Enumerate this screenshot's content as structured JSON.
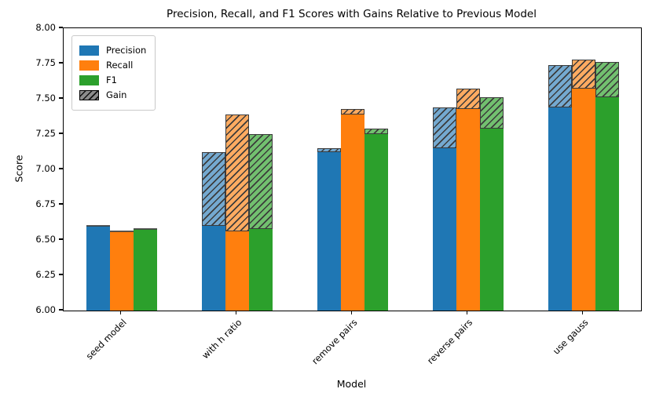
{
  "chart_data": {
    "type": "bar",
    "title": "Precision, Recall, and F1 Scores with Gains Relative to Previous Model",
    "xlabel": "Model",
    "ylabel": "Score",
    "ylim": [
      6.0,
      8.0
    ],
    "y_ticks": [
      "6.00",
      "6.25",
      "6.50",
      "6.75",
      "7.00",
      "7.25",
      "7.50",
      "7.75",
      "8.00"
    ],
    "categories": [
      "seed model",
      "with h ratio",
      "remove pairs",
      "reverse pairs",
      "use gauss"
    ],
    "series": [
      {
        "name": "Precision",
        "color": "#1f77b4",
        "gain_tint": "#74a9d0",
        "values": [
          6.6,
          7.12,
          7.15,
          7.44,
          7.74
        ],
        "gains": [
          0.0,
          0.52,
          0.03,
          0.29,
          0.3
        ]
      },
      {
        "name": "Recall",
        "color": "#ff7f0e",
        "gain_tint": "#ffab61",
        "values": [
          6.56,
          7.39,
          7.43,
          7.57,
          7.78
        ],
        "gains": [
          0.0,
          0.83,
          0.04,
          0.14,
          0.21
        ]
      },
      {
        "name": "F1",
        "color": "#2ca02c",
        "gain_tint": "#72c06f",
        "values": [
          6.58,
          7.25,
          7.29,
          7.51,
          7.76
        ],
        "gains": [
          0.0,
          0.67,
          0.04,
          0.22,
          0.25
        ]
      }
    ],
    "gain_legend": {
      "label": "Gain",
      "swatch_color": "#8c8c8c",
      "hatch_color": "#111111"
    },
    "hatch_line_color": "#3b3b3b",
    "legend_position": "upper left",
    "grid": false
  }
}
